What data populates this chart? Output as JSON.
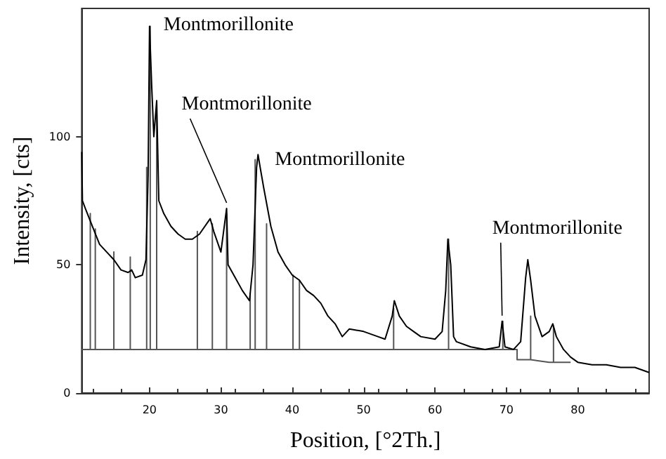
{
  "chart_data": {
    "type": "line",
    "xlabel": "Position, [°2Th.]",
    "ylabel": "Intensity, [cts]",
    "xlim": [
      10.5,
      90
    ],
    "xticks": [
      20,
      30,
      40,
      50,
      60,
      70,
      80
    ],
    "ylim": [
      0,
      150
    ],
    "yticks": [
      0,
      50,
      100
    ],
    "grid": false,
    "marker": "none",
    "line_style": "solid",
    "annotations": [
      {
        "text": "Montmorillonite",
        "x": 20,
        "y": 143
      },
      {
        "text": "Montmorillonite",
        "x": 30.8,
        "y": 72
      },
      {
        "text": "Montmorillonite",
        "x": 35.2,
        "y": 93
      },
      {
        "text": "Montmorillonite",
        "x": 69.4,
        "y": 28
      }
    ],
    "series": [
      {
        "color": "#555555",
        "x": [
          10.5,
          11.7,
          11.7,
          11.7,
          12.4,
          12.4,
          12.4,
          15,
          15,
          15,
          17.3,
          17.3,
          17.3,
          19.6,
          19.6,
          19.6,
          20.1,
          20.1,
          20.1,
          21,
          21,
          21,
          26.7,
          26.7,
          26.7,
          28.8,
          28.8,
          28.8,
          30.8,
          30.8,
          30.8,
          34.1,
          34.1,
          34.1,
          34.8,
          34.8,
          34.8,
          36.4,
          36.4,
          36.4,
          40.1,
          40.1,
          40.1,
          41,
          41,
          41,
          54.2,
          54.2,
          54.2,
          61.9,
          61.9,
          61.9,
          69.5,
          69.5,
          69.5,
          71.5,
          71.5,
          73.4,
          73.4,
          73.4,
          76,
          76.6,
          76.6,
          76.6,
          79
        ],
        "values": [
          17,
          17,
          70,
          17,
          17,
          64,
          17,
          17,
          55,
          17,
          17,
          53,
          17,
          17,
          88,
          17,
          17,
          143,
          17,
          17,
          114,
          17,
          17,
          63,
          17,
          17,
          66,
          17,
          17,
          70,
          17,
          17,
          39,
          17,
          17,
          91,
          17,
          17,
          66,
          17,
          17,
          46,
          17,
          17,
          44,
          17,
          17,
          33,
          17,
          17,
          60,
          17,
          17,
          28,
          17,
          17,
          13,
          13,
          30,
          13,
          12,
          12,
          26,
          12,
          12
        ]
      },
      {
        "color": "#000000",
        "x": [
          10.5,
          10.6,
          11,
          12,
          13,
          14,
          15,
          16,
          17,
          17.5,
          18,
          19,
          19.5,
          19.8,
          20,
          20.3,
          20.6,
          21,
          21.3,
          22,
          23,
          24,
          25,
          26,
          27,
          28,
          28.5,
          29,
          30,
          30.8,
          31,
          32,
          33,
          34,
          34.5,
          35,
          35.2,
          35.5,
          36,
          37,
          38,
          39,
          40,
          41,
          42,
          43,
          44,
          45,
          46,
          47,
          48,
          50,
          52,
          53,
          54,
          54.3,
          55,
          56,
          57,
          58,
          60,
          61,
          61.5,
          61.8,
          62.2,
          62.6,
          63,
          65,
          67,
          69,
          69.4,
          69.8,
          71,
          72,
          72.7,
          73,
          73.4,
          74,
          75,
          76,
          76.5,
          77,
          78,
          79,
          80,
          82,
          84,
          86,
          88,
          90
        ],
        "values": [
          94,
          75,
          72,
          65,
          58,
          55,
          52,
          48,
          47,
          48,
          45,
          46,
          52,
          85,
          143,
          120,
          100,
          114,
          75,
          70,
          65,
          62,
          60,
          60,
          62,
          66,
          68,
          63,
          55,
          72,
          50,
          45,
          40,
          36,
          50,
          88,
          93,
          88,
          80,
          65,
          55,
          50,
          46,
          44,
          40,
          38,
          35,
          30,
          27,
          22,
          25,
          24,
          22,
          21,
          30,
          36,
          30,
          26,
          24,
          22,
          21,
          24,
          40,
          60,
          50,
          22,
          20,
          18,
          17,
          18,
          28,
          18,
          17,
          20,
          45,
          52,
          44,
          30,
          22,
          24,
          27,
          22,
          17,
          14,
          12,
          11,
          11,
          10,
          10,
          8
        ]
      }
    ]
  }
}
